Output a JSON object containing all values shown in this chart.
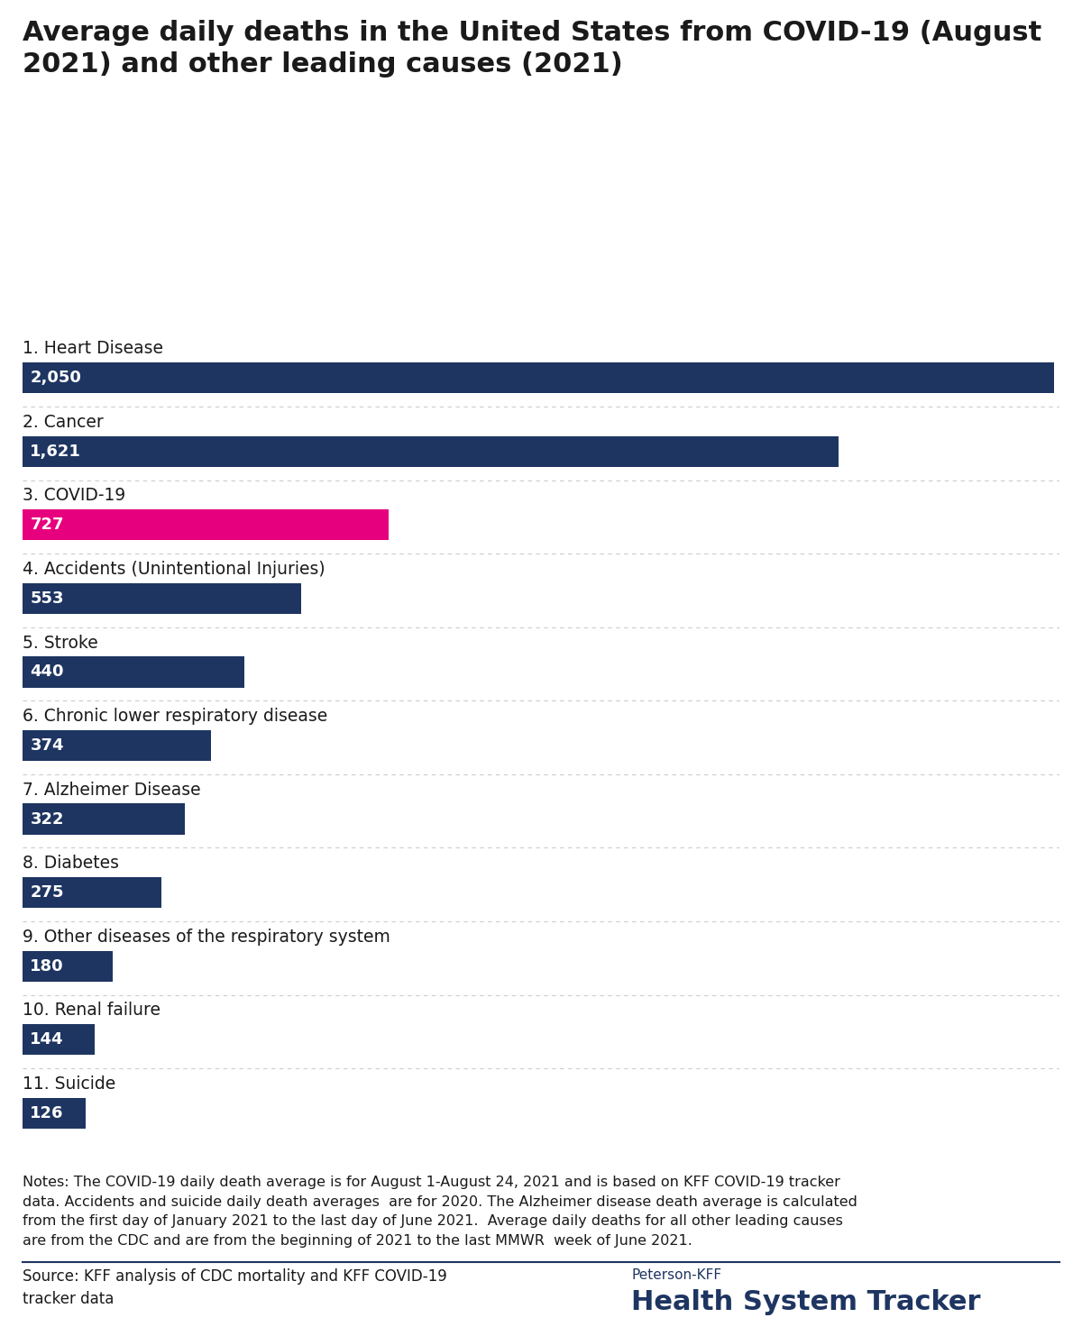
{
  "title_line1": "Average daily deaths in the United States from COVID-19 (August",
  "title_line2": "2021) and other leading causes (2021)",
  "categories": [
    "1. Heart Disease",
    "2. Cancer",
    "3. COVID-19",
    "4. Accidents (Unintentional Injuries)",
    "5. Stroke",
    "6. Chronic lower respiratory disease",
    "7. Alzheimer Disease",
    "8. Diabetes",
    "9. Other diseases of the respiratory system",
    "10. Renal failure",
    "11. Suicide"
  ],
  "values": [
    2050,
    1621,
    727,
    553,
    440,
    374,
    322,
    275,
    180,
    144,
    126
  ],
  "bar_colors": [
    "#1e3561",
    "#1e3561",
    "#e6007e",
    "#1e3561",
    "#1e3561",
    "#1e3561",
    "#1e3561",
    "#1e3561",
    "#1e3561",
    "#1e3561",
    "#1e3561"
  ],
  "max_value": 2050,
  "notes_line1": "Notes: The COVID-19 daily death average is for August 1-August 24, 2021 and is based on KFF COVID-19 tracker",
  "notes_line2": "data. Accidents and suicide daily death averages  are for 2020. The Alzheimer disease death average is calculated",
  "notes_line3": "from the first day of January 2021 to the last day of June 2021.  Average daily deaths for all other leading causes",
  "notes_line4": "are from the CDC and are from the beginning of 2021 to the last MMWR  week of June 2021.",
  "source_line1": "Source: KFF analysis of CDC mortality and KFF COVID-19",
  "source_line2": "tracker data",
  "brand_name": "Peterson-KFF",
  "brand_subtitle": "Health System Tracker",
  "bg_color": "#ffffff",
  "title_color": "#1a1a1a",
  "label_color": "#1a1a1a",
  "value_color": "#ffffff",
  "notes_color": "#1a1a1a",
  "source_color": "#1a1a1a",
  "brand_name_color": "#1e3561",
  "brand_subtitle_color": "#1e3561",
  "separator_color": "#cccccc",
  "divider_color": "#1e3561"
}
